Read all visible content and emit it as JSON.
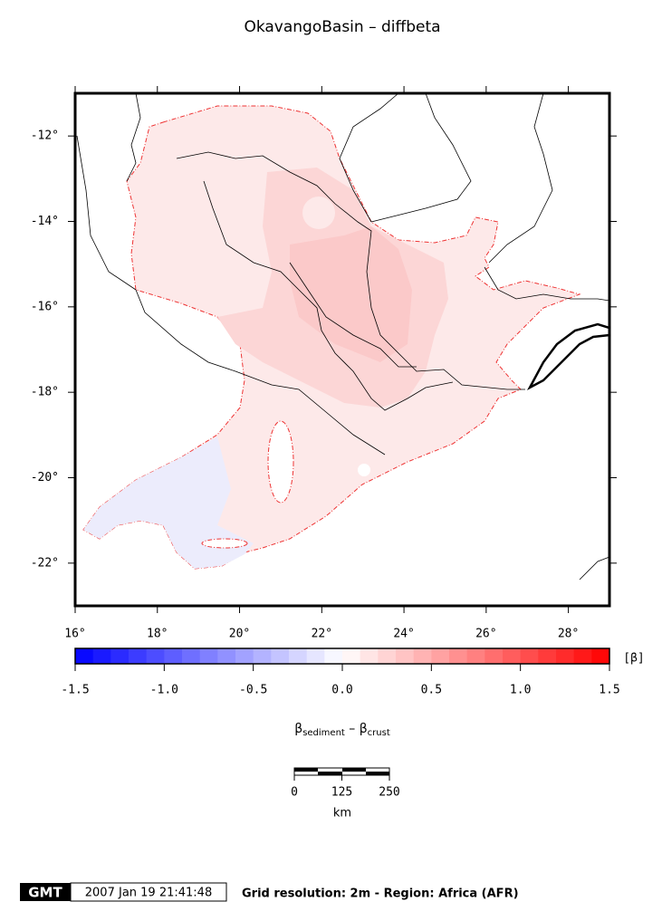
{
  "title": "OkavangoBasin – diffbeta",
  "map": {
    "xlim": [
      16,
      29
    ],
    "ylim": [
      -23,
      -11
    ],
    "xticks": [
      {
        "value": 16,
        "label": "16°"
      },
      {
        "value": 18,
        "label": "18°"
      },
      {
        "value": 20,
        "label": "20°"
      },
      {
        "value": 22,
        "label": "22°"
      },
      {
        "value": 24,
        "label": "24°"
      },
      {
        "value": 26,
        "label": "26°"
      },
      {
        "value": 28,
        "label": "28°"
      }
    ],
    "yticks": [
      {
        "value": -12,
        "label": "-12°"
      },
      {
        "value": -14,
        "label": "-14°"
      },
      {
        "value": -16,
        "label": "-16°"
      },
      {
        "value": -18,
        "label": "-18°"
      },
      {
        "value": -20,
        "label": "-20°"
      },
      {
        "value": -22,
        "label": "-22°"
      }
    ]
  },
  "colorbar": {
    "xlim": [
      -1.5,
      1.5
    ],
    "interval": 0.1,
    "colors": [
      "#0000ff",
      "#ffffff",
      "#ff0000"
    ],
    "ticks": [
      -1.5,
      {
        "value": -1,
        "label": "-1.0"
      },
      -0.5,
      {
        "value": 0,
        "label": "0.0"
      },
      0.5,
      {
        "value": 1,
        "label": "1.0"
      },
      1.5
    ],
    "unit": "[β]",
    "label": {
      "symbol1": "β",
      "sub1": "sediment",
      "op": " – ",
      "symbol2": "β",
      "sub2": "crust"
    }
  },
  "scale": {
    "xlim": [
      0,
      250
    ],
    "ticks": [
      0,
      125,
      250
    ],
    "unit": "km"
  },
  "footer": {
    "logo": "GMT",
    "timestamp": "2007 Jan 19 21:41:48",
    "note": "Grid resolution: 2m - Region: Africa (AFR)"
  }
}
